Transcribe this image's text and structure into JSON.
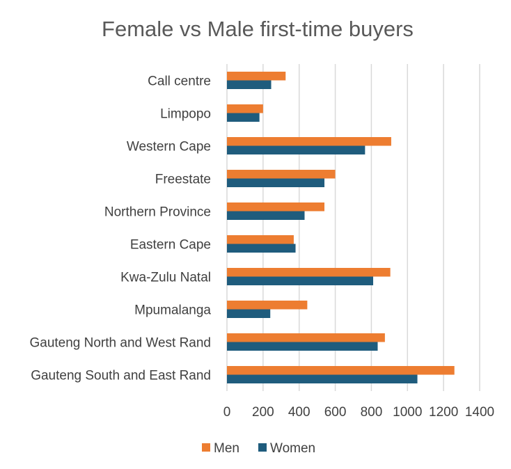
{
  "chart_data": {
    "type": "bar",
    "orientation": "horizontal",
    "title": "Female vs Male first-time buyers",
    "xlabel": "",
    "ylabel": "",
    "categories": [
      "Gauteng South and East Rand",
      "Gauteng North and West Rand",
      "Mpumalanga",
      "Kwa-Zulu Natal",
      "Eastern Cape",
      "Northern Province",
      "Freestate",
      "Western Cape",
      "Limpopo",
      "Call centre"
    ],
    "series": [
      {
        "name": "Men",
        "color": "#ED7D31",
        "values": [
          1260,
          875,
          445,
          905,
          370,
          540,
          600,
          910,
          200,
          325
        ]
      },
      {
        "name": "Women",
        "color": "#1F5C7D",
        "values": [
          1055,
          835,
          240,
          810,
          380,
          430,
          540,
          765,
          180,
          245
        ]
      }
    ],
    "xlim": [
      0,
      1400
    ],
    "x_ticks": [
      0,
      200,
      400,
      600,
      800,
      1000,
      1200,
      1400
    ],
    "grid": true,
    "legend_position": "bottom"
  }
}
